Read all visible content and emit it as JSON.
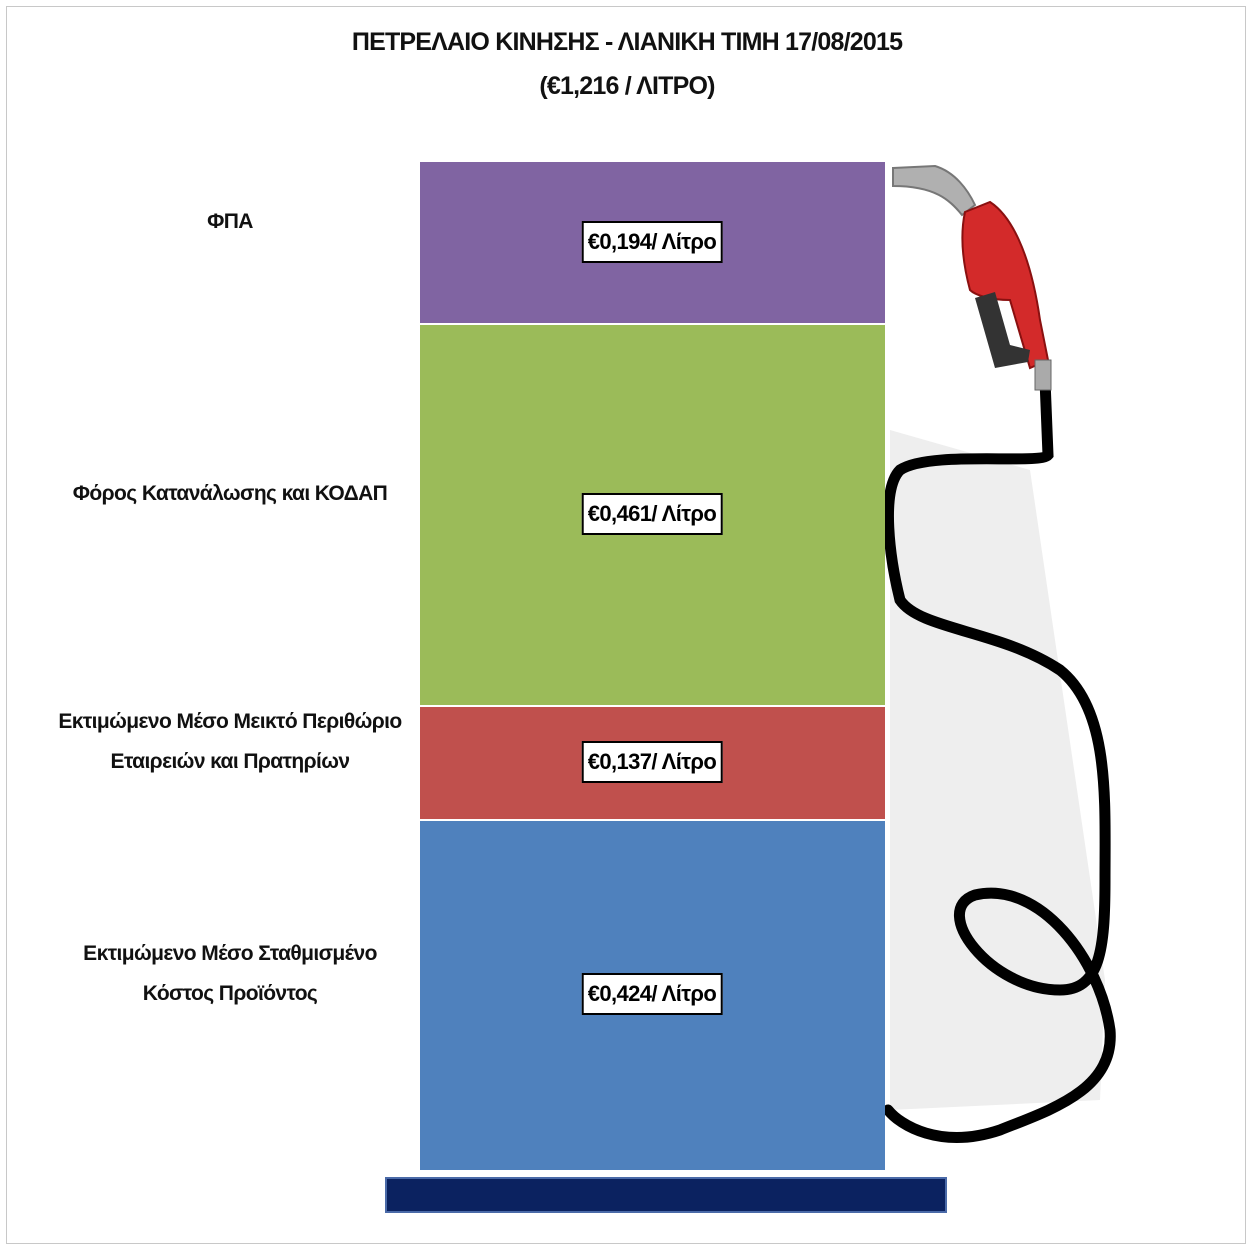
{
  "chart_data": {
    "type": "bar",
    "stacked": true,
    "title": "ΠΕΤΡΕΛΑΙΟ ΚΙΝΗΣΗΣ - ΛΙΑΝΙΚΗ ΤΙΜΗ 17/08/2015",
    "subtitle": "(€1,216 / ΛΙΤΡΟ)",
    "series": [
      {
        "name": "Εκτιμώμενο Μέσο Σταθμισμένο Κόστος Προϊόντος",
        "color": "#4f81bd",
        "values": [
          0.424
        ],
        "value_labels": [
          "€0,424/ Λίτρο"
        ]
      },
      {
        "name": "Εκτιμώμενο Μέσο Μεικτό Περιθώριο Εταιρειών και Πρατηρίων",
        "color": "#c0504d",
        "values": [
          0.137
        ],
        "value_labels": [
          "€0,137/ Λίτρο"
        ]
      },
      {
        "name": "Φόρος Κατανάλωσης και ΚΟΔΑΠ",
        "color": "#9bbb59",
        "values": [
          0.461
        ],
        "value_labels": [
          "€0,461/ Λίτρο"
        ]
      },
      {
        "name": "ΦΠΑ",
        "color": "#8064a2",
        "values": [
          0.194
        ],
        "value_labels": [
          "€0,194/ Λίτρο"
        ]
      }
    ]
  }
}
